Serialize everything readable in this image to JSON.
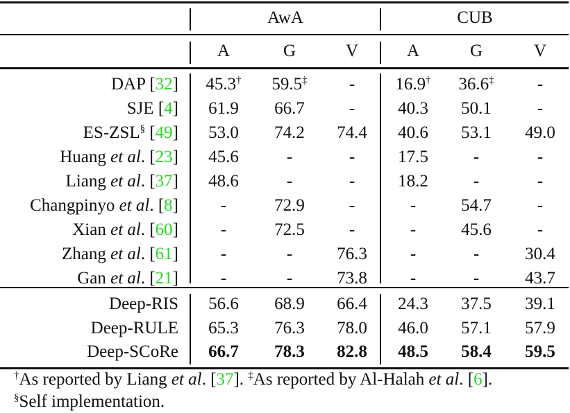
{
  "table": {
    "group_headers": [
      "AwA",
      "CUB"
    ],
    "sub_headers": [
      "A",
      "G",
      "V",
      "A",
      "G",
      "V"
    ],
    "rows": [
      {
        "name": "DAP",
        "etal": false,
        "sup": "",
        "ref": "32",
        "values": [
          "45.3",
          "59.5",
          "-",
          "16.9",
          "36.6",
          "-"
        ],
        "marks": [
          "†",
          "‡",
          "",
          "†",
          "‡",
          ""
        ],
        "bold": false
      },
      {
        "name": "SJE",
        "etal": false,
        "sup": "",
        "ref": "4",
        "values": [
          "61.9",
          "66.7",
          "-",
          "40.3",
          "50.1",
          "-"
        ],
        "marks": [
          "",
          "",
          "",
          "",
          "",
          ""
        ],
        "bold": false
      },
      {
        "name": "ES-ZSL",
        "etal": false,
        "sup": "§",
        "ref": "49",
        "values": [
          "53.0",
          "74.2",
          "74.4",
          "40.6",
          "53.1",
          "49.0"
        ],
        "marks": [
          "",
          "",
          "",
          "",
          "",
          ""
        ],
        "bold": false
      },
      {
        "name": "Huang",
        "etal": true,
        "sup": "",
        "ref": "23",
        "values": [
          "45.6",
          "-",
          "-",
          "17.5",
          "-",
          "-"
        ],
        "marks": [
          "",
          "",
          "",
          "",
          "",
          ""
        ],
        "bold": false
      },
      {
        "name": "Liang",
        "etal": true,
        "sup": "",
        "ref": "37",
        "values": [
          "48.6",
          "-",
          "-",
          "18.2",
          "-",
          "-"
        ],
        "marks": [
          "",
          "",
          "",
          "",
          "",
          ""
        ],
        "bold": false
      },
      {
        "name": "Changpinyo",
        "etal": true,
        "sup": "",
        "ref": "8",
        "values": [
          "-",
          "72.9",
          "-",
          "-",
          "54.7",
          "-"
        ],
        "marks": [
          "",
          "",
          "",
          "",
          "",
          ""
        ],
        "bold": false
      },
      {
        "name": "Xian",
        "etal": true,
        "sup": "",
        "ref": "60",
        "values": [
          "-",
          "72.5",
          "-",
          "-",
          "45.6",
          "-"
        ],
        "marks": [
          "",
          "",
          "",
          "",
          "",
          ""
        ],
        "bold": false
      },
      {
        "name": "Zhang",
        "etal": true,
        "sup": "",
        "ref": "61",
        "values": [
          "-",
          "-",
          "76.3",
          "-",
          "-",
          "30.4"
        ],
        "marks": [
          "",
          "",
          "",
          "",
          "",
          ""
        ],
        "bold": false
      },
      {
        "name": "Gan",
        "etal": true,
        "sup": "",
        "ref": "21",
        "values": [
          "-",
          "-",
          "73.8",
          "-",
          "-",
          "43.7"
        ],
        "marks": [
          "",
          "",
          "",
          "",
          "",
          ""
        ],
        "bold": false
      }
    ],
    "ours": [
      {
        "name": "Deep-RIS",
        "values": [
          "56.6",
          "68.9",
          "66.4",
          "24.3",
          "37.5",
          "39.1"
        ],
        "bold": false
      },
      {
        "name": "Deep-RULE",
        "values": [
          "65.3",
          "76.3",
          "78.0",
          "46.0",
          "57.1",
          "57.9"
        ],
        "bold": false
      },
      {
        "name": "Deep-SCoRe",
        "values": [
          "66.7",
          "78.3",
          "82.8",
          "48.5",
          "58.4",
          "59.5"
        ],
        "bold": true
      }
    ],
    "etal_text": "et al",
    "ref_color": "#22dd22"
  },
  "footnotes": {
    "line1": {
      "mark1": "†",
      "text1": "As reported by Liang ",
      "etal1": "et al",
      "dot1": ". [",
      "ref1": "37",
      "close1": "]. ",
      "mark2": "‡",
      "text2": "As reported by Al-Halah ",
      "etal2": "et al",
      "dot2": ". [",
      "ref2": "6",
      "close2": "]."
    },
    "line2": {
      "mark": "§",
      "text": "Self implementation."
    }
  }
}
